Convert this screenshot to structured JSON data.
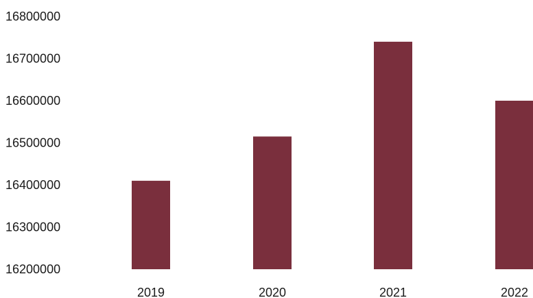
{
  "chart_data": {
    "type": "bar",
    "categories": [
      "2019",
      "2020",
      "2021",
      "2022"
    ],
    "values": [
      16410000,
      16515000,
      16740000,
      16600000
    ],
    "title": "",
    "xlabel": "",
    "ylabel": "",
    "ylim": [
      16200000,
      16800000
    ],
    "yticks": [
      "16800000",
      "16700000",
      "16600000",
      "16500000",
      "16400000",
      "16300000",
      "16200000"
    ],
    "bar_color": "#7a2f3d",
    "grid": false,
    "legend": "none"
  }
}
